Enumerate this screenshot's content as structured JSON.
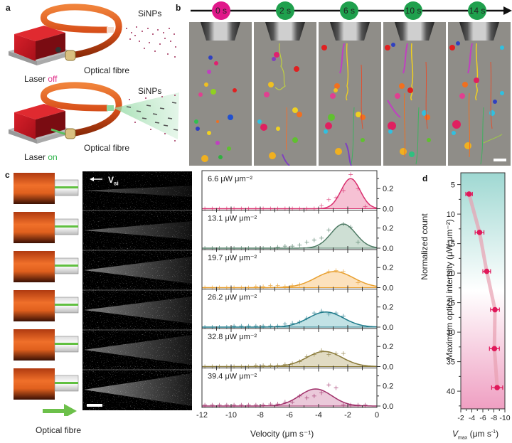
{
  "panels": {
    "a": {
      "letter": "a",
      "top": {
        "particles_label": "SiNPs",
        "fibre_label": "Optical fibre",
        "laser_prefix": "Laser ",
        "laser_state": "off",
        "laser_state_color": "#e0308a"
      },
      "bottom": {
        "particles_label": "SiNPs",
        "fibre_label": "Optical fibre",
        "laser_prefix": "Laser ",
        "laser_state": "on",
        "laser_state_color": "#2db34a"
      }
    },
    "b": {
      "letter": "b",
      "timeline": [
        {
          "label": "0 s",
          "color": "#e0188a"
        },
        {
          "label": "2 s",
          "color": "#1fa04d"
        },
        {
          "label": "6 s",
          "color": "#1fa04d"
        },
        {
          "label": "10 s",
          "color": "#1fa04d"
        },
        {
          "label": "14 s",
          "color": "#1fa04d"
        }
      ],
      "frames_count": 5,
      "scale_bar": true
    },
    "c": {
      "letter": "c",
      "velocity_label": "V",
      "velocity_subscript": "si",
      "fibre_label": "Optical fibre",
      "rows": 6
    },
    "d": {
      "letter": "d"
    }
  },
  "chart_data": [
    {
      "type": "bar",
      "subtype": "histogram-with-gaussian-fit",
      "title": "",
      "xlabel": "Velocity (μm s⁻¹)",
      "ylabel": "Normalized count",
      "xlim": [
        -12,
        0
      ],
      "ylim_per_panel": [
        0,
        0.35
      ],
      "x_ticks": [
        -12,
        -10,
        -8,
        -6,
        -4,
        -2,
        0
      ],
      "y_ticks": [
        0.0,
        0.2
      ],
      "series": [
        {
          "name": "6.6 μW μm⁻²",
          "color": "#d9306f",
          "fill": "#f4b6cc",
          "peak_x": -1.8,
          "peak_y": 0.3,
          "sigma": 0.65,
          "points": [
            [
              -11.8,
              0
            ],
            [
              -11.3,
              0
            ],
            [
              -10.8,
              0
            ],
            [
              -10.3,
              0
            ],
            [
              -9.8,
              0
            ],
            [
              -9.3,
              0
            ],
            [
              -8.8,
              0
            ],
            [
              -8.3,
              0
            ],
            [
              -7.8,
              0
            ],
            [
              -7.3,
              0
            ],
            [
              -6.8,
              0
            ],
            [
              -6.3,
              0
            ],
            [
              -5.8,
              0
            ],
            [
              -5.3,
              0
            ],
            [
              -4.8,
              0
            ],
            [
              -4.3,
              0
            ],
            [
              -3.8,
              0.03
            ],
            [
              -3.3,
              0.09
            ],
            [
              -2.8,
              0.11
            ],
            [
              -2.3,
              0.18
            ],
            [
              -1.8,
              0.34
            ],
            [
              -1.3,
              0.2
            ],
            [
              -0.8,
              0.02
            ]
          ]
        },
        {
          "name": "13.1 μW μm⁻²",
          "color": "#4e7a64",
          "fill": "#c5d9cd",
          "peak_x": -2.3,
          "peak_y": 0.24,
          "sigma": 0.85,
          "points": [
            [
              -11.8,
              0
            ],
            [
              -11.3,
              0
            ],
            [
              -10.8,
              0
            ],
            [
              -10.3,
              0
            ],
            [
              -9.8,
              0
            ],
            [
              -9.3,
              0
            ],
            [
              -8.8,
              0
            ],
            [
              -8.3,
              0
            ],
            [
              -7.8,
              0
            ],
            [
              -7.3,
              0
            ],
            [
              -6.8,
              0.01
            ],
            [
              -6.3,
              0.02
            ],
            [
              -5.8,
              0.02
            ],
            [
              -5.3,
              0.03
            ],
            [
              -4.8,
              0.06
            ],
            [
              -4.3,
              0.08
            ],
            [
              -3.8,
              0.1
            ],
            [
              -3.3,
              0.18
            ],
            [
              -2.3,
              0.24
            ],
            [
              -1.8,
              0.21
            ],
            [
              -1.3,
              0.06
            ]
          ]
        },
        {
          "name": "19.7 μW μm⁻²",
          "color": "#e8a030",
          "fill": "#fbdcb0",
          "peak_x": -2.9,
          "peak_y": 0.16,
          "sigma": 1.3,
          "points": [
            [
              -11.8,
              0
            ],
            [
              -11.3,
              0
            ],
            [
              -10.8,
              0
            ],
            [
              -10.3,
              0
            ],
            [
              -9.8,
              0
            ],
            [
              -9.3,
              0
            ],
            [
              -8.8,
              0
            ],
            [
              -8.3,
              0.01
            ],
            [
              -7.8,
              0.01
            ],
            [
              -7.3,
              0.02
            ],
            [
              -6.8,
              0.02
            ],
            [
              -6.3,
              0.01
            ],
            [
              -5.8,
              0.02
            ],
            [
              -5.3,
              0.03
            ],
            [
              -3.3,
              0.16
            ],
            [
              -2.8,
              0.17
            ],
            [
              -2.3,
              0.16
            ],
            [
              -1.3,
              0.05
            ]
          ]
        },
        {
          "name": "26.2 μW μm⁻²",
          "color": "#1f7a8a",
          "fill": "#b7dde0",
          "peak_x": -3.5,
          "peak_y": 0.15,
          "sigma": 1.2,
          "points": [
            [
              -11.8,
              0
            ],
            [
              -11.3,
              0
            ],
            [
              -10.8,
              0
            ],
            [
              -10.3,
              0
            ],
            [
              -9.8,
              0.01
            ],
            [
              -9.3,
              0.01
            ],
            [
              -8.8,
              0.01
            ],
            [
              -8.3,
              0.01
            ],
            [
              -7.8,
              0.01
            ],
            [
              -7.3,
              0.01
            ],
            [
              -6.8,
              0.01
            ],
            [
              -6.3,
              0.03
            ],
            [
              -5.8,
              0.04
            ],
            [
              -5.3,
              0.05
            ],
            [
              -4.8,
              0.09
            ],
            [
              -4.3,
              0.14
            ],
            [
              -3.8,
              0.16
            ],
            [
              -3.3,
              0.13
            ],
            [
              -2.8,
              0.14
            ],
            [
              -2.3,
              0.11
            ]
          ]
        },
        {
          "name": "32.8 μW μm⁻²",
          "color": "#8a7a3a",
          "fill": "#dcd5b8",
          "peak_x": -3.6,
          "peak_y": 0.15,
          "sigma": 1.2,
          "points": [
            [
              -11.8,
              0
            ],
            [
              -11.3,
              0
            ],
            [
              -10.8,
              0
            ],
            [
              -10.3,
              0
            ],
            [
              -9.8,
              0
            ],
            [
              -9.3,
              0
            ],
            [
              -8.8,
              0
            ],
            [
              -8.3,
              0.01
            ],
            [
              -7.8,
              0.01
            ],
            [
              -7.3,
              0.01
            ],
            [
              -6.8,
              0.01
            ],
            [
              -6.3,
              0.02
            ],
            [
              -5.8,
              0.03
            ],
            [
              -5.3,
              0.05
            ],
            [
              -4.8,
              0.1
            ],
            [
              -4.3,
              0.12
            ],
            [
              -3.8,
              0.16
            ],
            [
              -3.3,
              0.12
            ],
            [
              -2.8,
              0.13
            ],
            [
              -2.3,
              0.13
            ]
          ]
        },
        {
          "name": "39.4 μW μm⁻²",
          "color": "#a0306a",
          "fill": "#e8bfd3",
          "peak_x": -4.2,
          "peak_y": 0.17,
          "sigma": 1.1,
          "points": [
            [
              -11.8,
              0.01
            ],
            [
              -11.3,
              0.01
            ],
            [
              -10.8,
              0.01
            ],
            [
              -10.3,
              0.01
            ],
            [
              -9.8,
              0.01
            ],
            [
              -9.3,
              0.01
            ],
            [
              -8.8,
              0.01
            ],
            [
              -8.3,
              0.01
            ],
            [
              -7.8,
              0.01
            ],
            [
              -7.3,
              0.02
            ],
            [
              -6.8,
              0.02
            ],
            [
              -6.3,
              0.04
            ],
            [
              -5.8,
              0.04
            ],
            [
              -5.3,
              0.1
            ],
            [
              -4.8,
              0.08
            ],
            [
              -4.3,
              0.1
            ],
            [
              -3.8,
              0.13
            ],
            [
              -3.3,
              0.21
            ],
            [
              -2.8,
              0.18
            ],
            [
              -2.3,
              0.01
            ],
            [
              -1.8,
              0.01
            ],
            [
              -1.3,
              0.01
            ],
            [
              -0.8,
              0.01
            ]
          ]
        }
      ]
    },
    {
      "type": "scatter",
      "title": "",
      "xlabel": "V_max (μm s⁻¹)",
      "ylabel": "Maximum optical intensity (μW μm⁻²)",
      "xlim": [
        -2,
        -10
      ],
      "ylim": [
        3,
        43
      ],
      "y_inverted": true,
      "x_ticks": [
        -2,
        -4,
        -6,
        -8,
        -10
      ],
      "y_ticks": [
        5,
        10,
        15,
        20,
        25,
        30,
        35,
        40
      ],
      "grid": false,
      "background_gradient": [
        "#9fd8d2",
        "#ffffff",
        "#ef9fc2"
      ],
      "marker_color": "#e0185a",
      "series": [
        {
          "name": "Vmax",
          "x": [
            -3.5,
            -5.4,
            -6.7,
            -8.2,
            -8.1,
            -8.6
          ],
          "y": [
            6.6,
            13.1,
            19.7,
            26.2,
            32.8,
            39.4
          ],
          "xerr": [
            0.6,
            0.8,
            0.7,
            0.8,
            0.9,
            1.0
          ]
        }
      ]
    }
  ]
}
